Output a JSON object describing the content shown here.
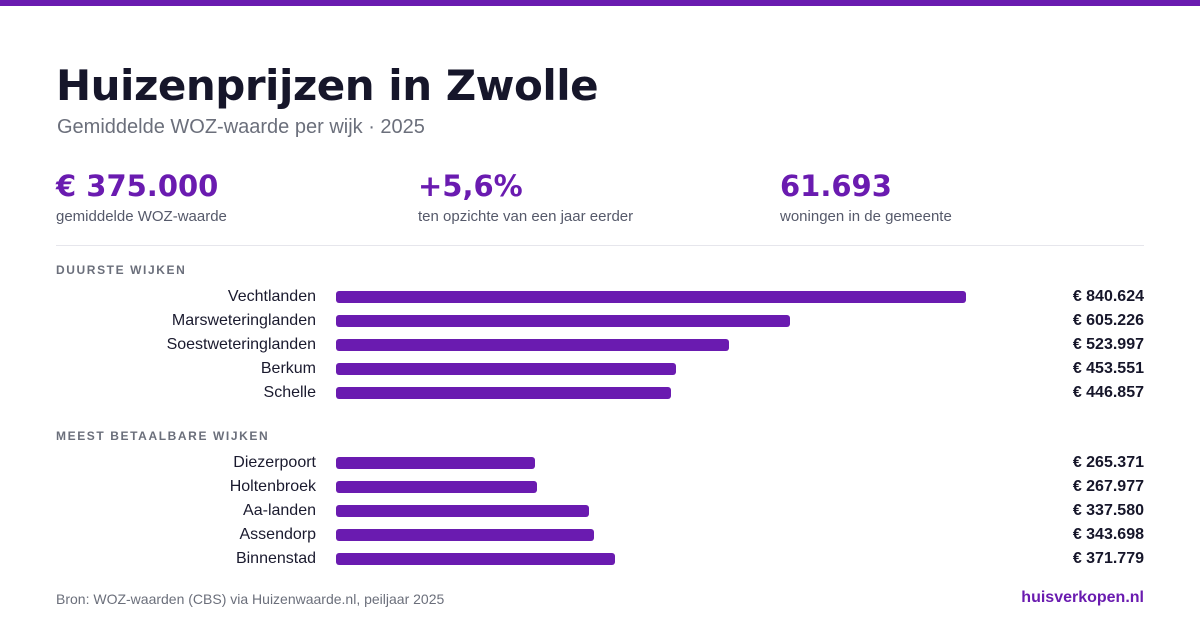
{
  "colors": {
    "accent": "#6a1bb0",
    "bar": "#6a1bb0",
    "text": "#16162a",
    "muted": "#6b6f7b"
  },
  "header": {
    "title": "Huizenprijzen in Zwolle",
    "subtitle": "Gemiddelde WOZ-waarde per wijk · 2025"
  },
  "kpis": [
    {
      "value": "€ 375.000",
      "label": "gemiddelde WOZ-waarde"
    },
    {
      "value": "+5,6%",
      "label": "ten opzichte van een jaar eerder"
    },
    {
      "value": "61.693",
      "label": "woningen in de gemeente"
    }
  ],
  "chart_data": {
    "type": "bar",
    "orientation": "horizontal",
    "max_value": 840624,
    "groups": [
      {
        "title": "DUURSTE WIJKEN",
        "categories": [
          "Vechtlanden",
          "Marsweteringlanden",
          "Soestweteringlanden",
          "Berkum",
          "Schelle"
        ],
        "values": [
          840624,
          605226,
          523997,
          453551,
          446857
        ],
        "labels": [
          "€ 840.624",
          "€ 605.226",
          "€ 523.997",
          "€ 453.551",
          "€ 446.857"
        ]
      },
      {
        "title": "MEEST BETAALBARE WIJKEN",
        "categories": [
          "Diezerpoort",
          "Holtenbroek",
          "Aa-landen",
          "Assendorp",
          "Binnenstad"
        ],
        "values": [
          265371,
          267977,
          337580,
          343698,
          371779
        ],
        "labels": [
          "€ 265.371",
          "€ 267.977",
          "€ 337.580",
          "€ 343.698",
          "€ 371.779"
        ]
      }
    ]
  },
  "footer": {
    "source": "Bron: WOZ-waarden (CBS) via Huizenwaarde.nl, peiljaar 2025",
    "brand": "huisverkopen.nl"
  }
}
